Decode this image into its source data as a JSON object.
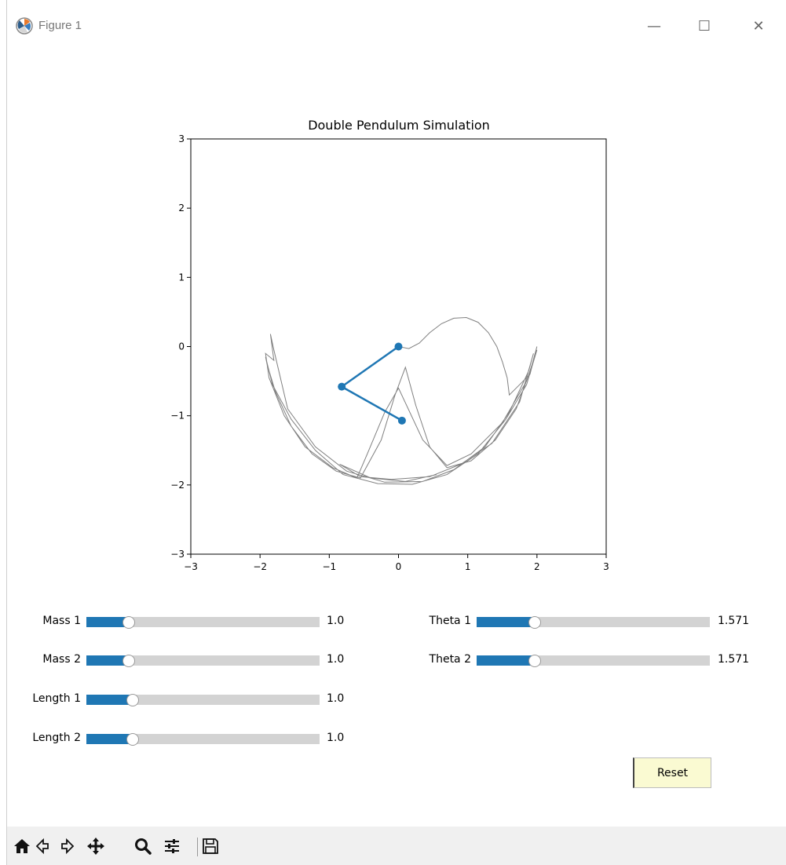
{
  "window": {
    "title": "Figure 1",
    "minimize_label": "—",
    "maximize_label": "☐",
    "close_label": "✕"
  },
  "chart_data": {
    "type": "line",
    "title": "Double Pendulum Simulation",
    "xlim": [
      -3,
      3
    ],
    "ylim": [
      -3,
      3
    ],
    "xticks": [
      -3,
      -2,
      -1,
      0,
      1,
      2,
      3
    ],
    "yticks": [
      -3,
      -2,
      -1,
      0,
      1,
      2,
      3
    ],
    "xtick_labels": [
      "−3",
      "−2",
      "−1",
      "0",
      "1",
      "2",
      "3"
    ],
    "ytick_labels": [
      "−3",
      "−2",
      "−1",
      "0",
      "1",
      "2",
      "3"
    ],
    "grid": false,
    "pendulum": {
      "color": "#1f77b4",
      "points": [
        [
          0.0,
          0.0
        ],
        [
          -0.82,
          -0.58
        ],
        [
          0.05,
          -1.07
        ]
      ]
    },
    "trace": {
      "color": "#808080",
      "points": [
        [
          0.0,
          0.0
        ],
        [
          0.15,
          -0.03
        ],
        [
          0.3,
          0.05
        ],
        [
          0.45,
          0.2
        ],
        [
          0.62,
          0.33
        ],
        [
          0.8,
          0.41
        ],
        [
          0.98,
          0.42
        ],
        [
          1.15,
          0.35
        ],
        [
          1.3,
          0.2
        ],
        [
          1.42,
          0.0
        ],
        [
          1.5,
          -0.22
        ],
        [
          1.57,
          -0.45
        ],
        [
          1.6,
          -0.7
        ],
        [
          1.9,
          -0.4
        ],
        [
          2.0,
          0.0
        ],
        [
          1.92,
          -0.3
        ],
        [
          1.7,
          -0.9
        ],
        [
          1.4,
          -1.35
        ],
        [
          1.05,
          -1.65
        ],
        [
          0.7,
          -1.75
        ],
        [
          0.45,
          -1.45
        ],
        [
          0.25,
          -0.85
        ],
        [
          0.1,
          -0.3
        ],
        [
          -0.05,
          -0.7
        ],
        [
          -0.25,
          -1.35
        ],
        [
          -0.55,
          -1.9
        ],
        [
          -0.9,
          -1.8
        ],
        [
          -1.25,
          -1.55
        ],
        [
          -1.55,
          -1.15
        ],
        [
          -1.78,
          -0.65
        ],
        [
          -1.9,
          -0.25
        ],
        [
          -1.92,
          -0.15
        ],
        [
          -1.82,
          -0.55
        ],
        [
          -1.55,
          -1.05
        ],
        [
          -1.2,
          -1.5
        ],
        [
          -0.8,
          -1.85
        ],
        [
          -0.3,
          -1.98
        ],
        [
          0.2,
          -1.99
        ],
        [
          0.7,
          -1.85
        ],
        [
          1.15,
          -1.55
        ],
        [
          1.55,
          -1.05
        ],
        [
          1.85,
          -0.55
        ],
        [
          2.0,
          -0.05
        ],
        [
          1.85,
          -0.5
        ],
        [
          1.5,
          -1.1
        ],
        [
          1.05,
          -1.55
        ],
        [
          0.7,
          -1.72
        ],
        [
          0.35,
          -1.35
        ],
        [
          0.0,
          -0.6
        ],
        [
          -0.2,
          -0.95
        ],
        [
          -0.45,
          -1.55
        ],
        [
          -0.6,
          -1.9
        ],
        [
          -0.95,
          -1.75
        ],
        [
          -1.35,
          -1.45
        ],
        [
          -1.65,
          -1.0
        ],
        [
          -1.87,
          -0.45
        ],
        [
          -1.92,
          -0.1
        ],
        [
          -1.8,
          -0.2
        ],
        [
          -1.85,
          0.18
        ],
        [
          -1.8,
          -0.05
        ],
        [
          -1.6,
          -0.9
        ],
        [
          -1.2,
          -1.45
        ],
        [
          -0.75,
          -1.8
        ],
        [
          -0.2,
          -1.96
        ],
        [
          0.35,
          -1.95
        ],
        [
          0.8,
          -1.78
        ],
        [
          1.25,
          -1.45
        ],
        [
          1.6,
          -0.95
        ],
        [
          1.88,
          -0.35
        ],
        [
          1.95,
          -0.1
        ],
        [
          1.75,
          -0.8
        ],
        [
          1.35,
          -1.4
        ],
        [
          0.9,
          -1.7
        ],
        [
          0.45,
          -1.88
        ],
        [
          -0.1,
          -1.92
        ],
        [
          -0.55,
          -1.88
        ],
        [
          -0.85,
          -1.7
        ],
        [
          -0.4,
          -1.9
        ],
        [
          0.1,
          -1.95
        ],
        [
          0.55,
          -1.85
        ]
      ]
    }
  },
  "sliders": [
    {
      "label": "Mass 1",
      "value": "1.0",
      "fraction": 0.183
    },
    {
      "label": "Mass 2",
      "value": "1.0",
      "fraction": 0.183
    },
    {
      "label": "Length 1",
      "value": "1.0",
      "fraction": 0.2
    },
    {
      "label": "Length 2",
      "value": "1.0",
      "fraction": 0.2
    },
    {
      "label": "Theta 1",
      "value": "1.571",
      "fraction": 0.25
    },
    {
      "label": "Theta 2",
      "value": "1.571",
      "fraction": 0.25
    }
  ],
  "reset_label": "Reset",
  "toolbar": {
    "icons": [
      "home-icon",
      "back-icon",
      "forward-icon",
      "pan-icon",
      "zoom-icon",
      "configure-icon",
      "save-icon"
    ]
  }
}
